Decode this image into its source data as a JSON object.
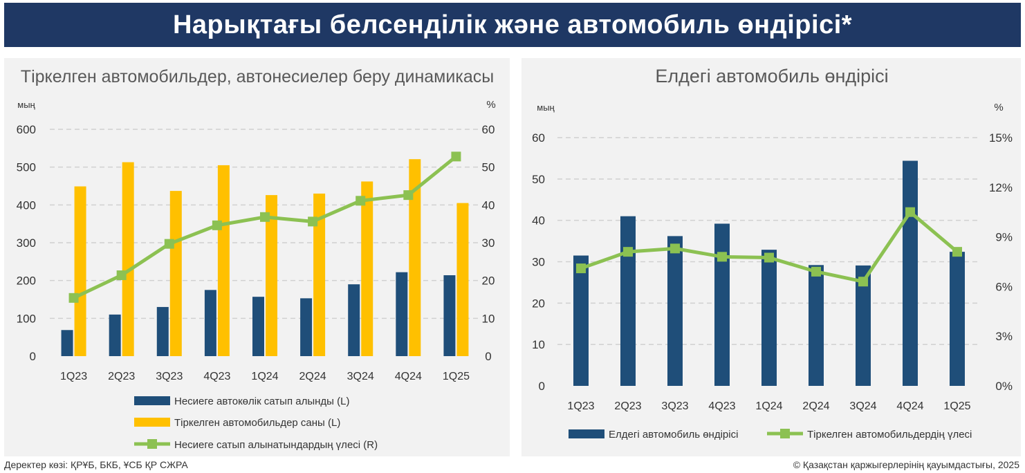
{
  "header": {
    "title": "Нарықтағы белсенділік және автомобиль өндірісі*"
  },
  "footer": {
    "source": "Деректер көзі: ҚРҰБ, БКБ, ҰСБ ҚР СЖРА",
    "copyright": "© Қазақстан қаржыгерлерінің қауымдастығы, 2025"
  },
  "colors": {
    "banner": "#1f3864",
    "bar_navy": "#1f4e79",
    "bar_yellow": "#ffc000",
    "line_green": "#8cc152"
  },
  "chart_data": [
    {
      "type": "bar",
      "title": "Тіркелген автомобильдер, автонесиелер беру динамикасы",
      "ylabel_left": "мың",
      "ylabel_right": "%",
      "categories": [
        "1Q23",
        "2Q23",
        "3Q23",
        "4Q23",
        "1Q24",
        "2Q24",
        "3Q24",
        "4Q24",
        "1Q25"
      ],
      "ylim_left": [
        0,
        600
      ],
      "yticks_left": [
        "0",
        "100",
        "200",
        "300",
        "400",
        "500",
        "600"
      ],
      "ylim_right": [
        0,
        60
      ],
      "yticks_right": [
        "0",
        "10",
        "20",
        "30",
        "40",
        "50",
        "60"
      ],
      "grid": true,
      "legend_position": "bottom",
      "series": [
        {
          "name": "Несиеге автокөлік сатып алынды (L)",
          "kind": "bar",
          "axis": "left",
          "color": "#1f4e79",
          "values": [
            69,
            110,
            130,
            175,
            157,
            153,
            190,
            222,
            214
          ]
        },
        {
          "name": "Тіркелген автомобильдер саны (L)",
          "kind": "bar",
          "axis": "left",
          "color": "#ffc000",
          "values": [
            449,
            513,
            437,
            505,
            426,
            430,
            462,
            521,
            405
          ]
        },
        {
          "name": "Несиеге сатып алынатындардың үлесі (R)",
          "kind": "line",
          "axis": "right",
          "color": "#8cc152",
          "values": [
            15.4,
            21.4,
            29.7,
            34.6,
            36.8,
            35.6,
            41.1,
            42.6,
            52.8
          ]
        }
      ]
    },
    {
      "type": "bar",
      "title": "Елдегі автомобиль өндірісі",
      "ylabel_left": "мың",
      "ylabel_right": "%",
      "categories": [
        "1Q23",
        "2Q23",
        "3Q23",
        "4Q23",
        "1Q24",
        "2Q24",
        "3Q24",
        "4Q24",
        "1Q25"
      ],
      "ylim_left": [
        0,
        60
      ],
      "yticks_left": [
        "0",
        "10",
        "20",
        "30",
        "40",
        "50",
        "60"
      ],
      "ylim_right": [
        0,
        15
      ],
      "yticks_right": [
        "0%",
        "3%",
        "6%",
        "9%",
        "12%",
        "15%"
      ],
      "grid": true,
      "legend_position": "bottom",
      "series": [
        {
          "name": "Елдегі автомобиль өндірісі",
          "kind": "bar",
          "axis": "left",
          "color": "#1f4e79",
          "values": [
            31.5,
            41.0,
            36.2,
            39.2,
            32.9,
            29.2,
            29.1,
            54.4,
            32.4
          ]
        },
        {
          "name": "Тіркелген автомобильдердің үлесі",
          "kind": "line",
          "axis": "right",
          "color": "#8cc152",
          "values": [
            7.1,
            8.1,
            8.3,
            7.8,
            7.75,
            6.9,
            6.3,
            10.5,
            8.1
          ]
        }
      ]
    }
  ]
}
